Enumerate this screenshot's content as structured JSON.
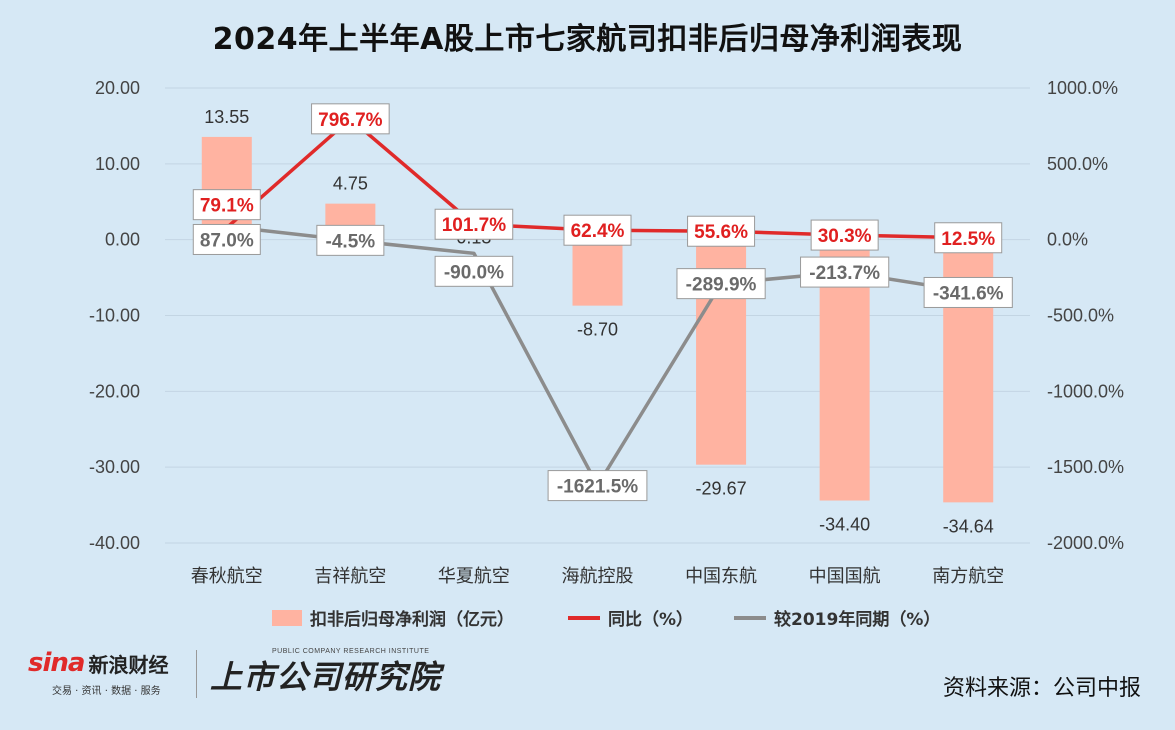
{
  "title": "2024年上半年A股上市七家航司扣非后归母净利润表现",
  "chart_data": {
    "type": "bar",
    "categories": [
      "春秋航空",
      "吉祥航空",
      "华夏航空",
      "海航控股",
      "中国东航",
      "中国国航",
      "南方航空"
    ],
    "left_axis": {
      "ticks": [
        "20.00",
        "10.00",
        "0.00",
        "-10.00",
        "-20.00",
        "-30.00",
        "-40.00"
      ],
      "range": [
        -40,
        20
      ]
    },
    "right_axis": {
      "ticks": [
        "1000.0%",
        "500.0%",
        "0.0%",
        "-500.0%",
        "-1000.0%",
        "-1500.0%",
        "-2000.0%"
      ],
      "range": [
        -2000,
        1000
      ]
    },
    "series": [
      {
        "name": "扣非后归母净利润（亿元）",
        "type": "bar",
        "axis": "left",
        "color": "#ffb3a1",
        "values": [
          13.55,
          4.75,
          0.13,
          -8.7,
          -29.67,
          -34.4,
          -34.64
        ],
        "labels": [
          "13.55",
          "4.75",
          "0.13",
          "-8.70",
          "-29.67",
          "-34.40",
          "-34.64"
        ]
      },
      {
        "name": "同比（%）",
        "type": "line",
        "axis": "right",
        "color": "#e02a2a",
        "values": [
          79.1,
          796.7,
          101.7,
          62.4,
          55.6,
          30.3,
          12.5
        ],
        "labels": [
          "79.1%",
          "796.7%",
          "101.7%",
          "62.4%",
          "55.6%",
          "30.3%",
          "12.5%"
        ]
      },
      {
        "name": "较2019年同期（%）",
        "type": "line",
        "axis": "right",
        "color": "#8c8c8c",
        "values": [
          87.0,
          -4.5,
          -90.0,
          -1621.5,
          -289.9,
          -213.7,
          -341.6
        ],
        "labels": [
          "87.0%",
          "-4.5%",
          "-90.0%",
          "-1621.5%",
          "-289.9%",
          "-213.7%",
          "-341.6%"
        ]
      }
    ],
    "legend_position": "bottom",
    "grid": true
  },
  "footer": {
    "logo_sina": "sina",
    "logo_sina_name": "新浪财经",
    "logo_sina_sub": "交易 · 资讯 · 数据 · 服务",
    "logo_inst": "上市公司研究院",
    "logo_inst_en": "PUBLIC COMPANY RESEARCH INSTITUTE",
    "source": "资料来源：公司中报"
  }
}
